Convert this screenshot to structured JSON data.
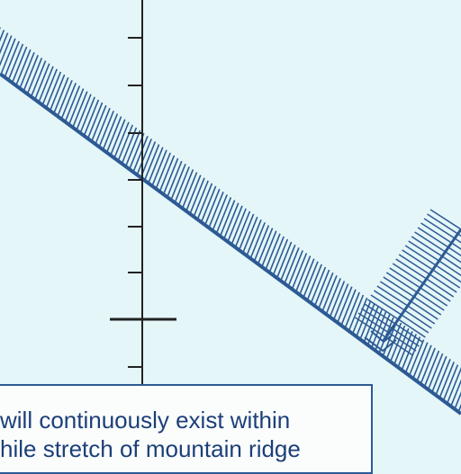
{
  "map": {
    "colors": {
      "background": "#e4f6f8",
      "line": "#2d5a94",
      "hatch": "#2d5a94",
      "axis": "#222222",
      "note_text": "#1c3f78"
    },
    "features": [
      {
        "name": "diagonal-ridge-hatched-band"
      },
      {
        "name": "branch-ridge-hatched-band"
      },
      {
        "name": "vertical-tick-axis"
      }
    ]
  },
  "note": {
    "line1": "will continuously exist within",
    "line2": "hile stretch of mountain ridge"
  }
}
